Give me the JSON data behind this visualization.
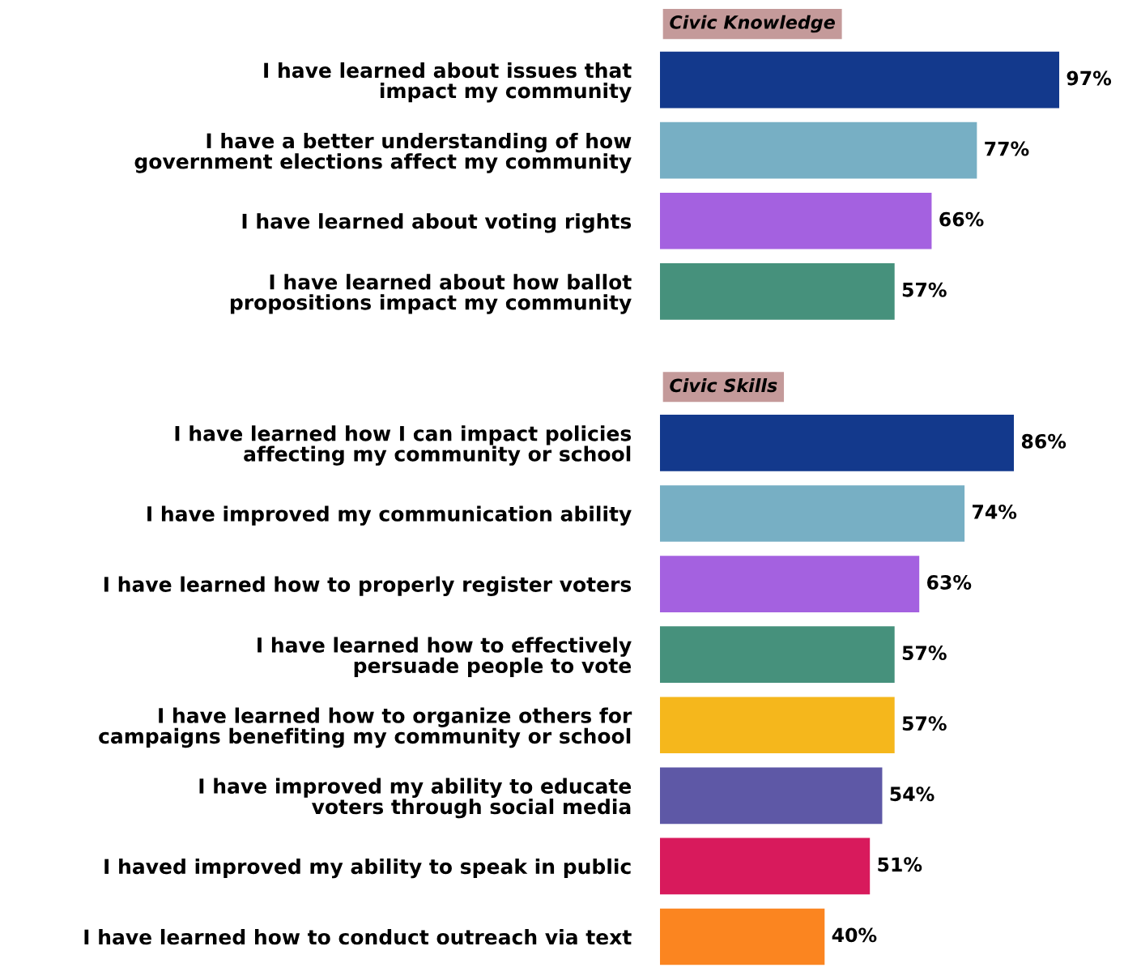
{
  "chart_data": [
    {
      "type": "bar",
      "orientation": "horizontal",
      "title": "Civic Knowledge",
      "categories": [
        "I have learned about issues that\nimpact my community",
        "I have a better understanding of how\ngovernment elections affect my community",
        "I have learned about voting rights",
        "I have learned about how ballot\npropositions impact my community"
      ],
      "values": [
        97,
        77,
        66,
        57
      ],
      "value_labels": [
        "97%",
        "77%",
        "66%",
        "57%"
      ],
      "colors": [
        "#13398c",
        "#77afc4",
        "#a461e0",
        "#46917c"
      ],
      "grid": false,
      "legend": false
    },
    {
      "type": "bar",
      "orientation": "horizontal",
      "title": "Civic Skills",
      "categories": [
        "I have learned how I can impact policies\naffecting my community or school",
        "I have improved my communication ability",
        "I have learned how to properly register voters",
        "I have learned how to effectively\npersuade people to vote",
        "I have learned how to organize others for\ncampaigns benefiting my community or school",
        "I have improved my ability to educate\nvoters through social media",
        "I haved improved my ability to speak in public",
        "I have learned how to conduct outreach via text"
      ],
      "values": [
        86,
        74,
        63,
        57,
        57,
        54,
        51,
        40
      ],
      "value_labels": [
        "86%",
        "74%",
        "63%",
        "57%",
        "57%",
        "54%",
        "51%",
        "40%"
      ],
      "colors": [
        "#13398c",
        "#77afc4",
        "#a461e0",
        "#46917c",
        "#f5b71c",
        "#5e58a6",
        "#d81a5c",
        "#fb8520"
      ],
      "grid": false,
      "legend": false
    }
  ]
}
